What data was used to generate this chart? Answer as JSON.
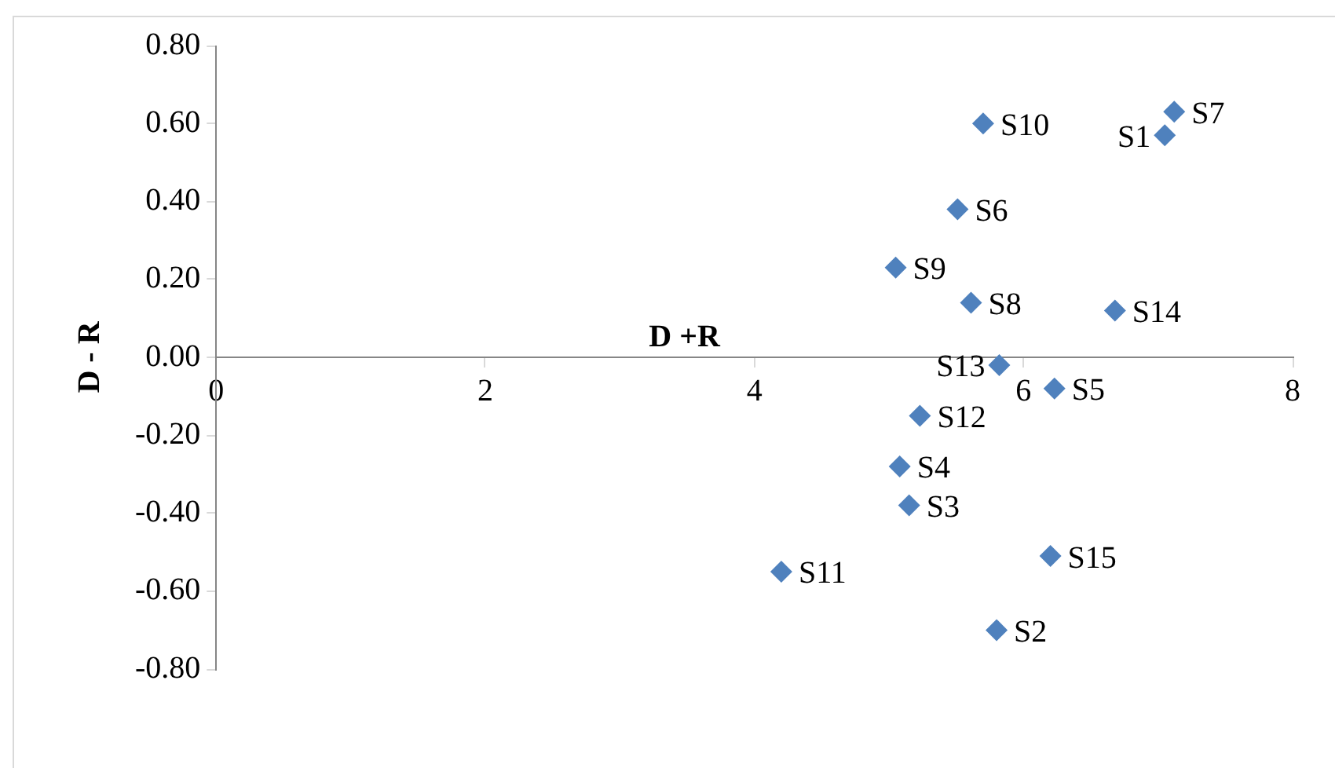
{
  "chart_data": {
    "type": "scatter",
    "xlabel": "D +R",
    "ylabel": "D - R",
    "x": [
      7.05,
      5.8,
      5.15,
      5.08,
      6.23,
      5.51,
      7.12,
      5.61,
      5.05,
      5.7,
      4.2,
      5.23,
      5.82,
      6.68,
      6.2
    ],
    "series": [
      {
        "color": "#4f81bd",
        "values": [
          0.57,
          -0.7,
          -0.38,
          -0.28,
          -0.08,
          0.38,
          0.63,
          0.14,
          0.23,
          0.6,
          -0.55,
          -0.15,
          -0.02,
          0.12,
          -0.51
        ]
      }
    ],
    "annotations": [
      {
        "text": "S1",
        "x": 7.05,
        "y": 0.57
      },
      {
        "text": "S2",
        "x": 5.8,
        "y": -0.7
      },
      {
        "text": "S3",
        "x": 5.15,
        "y": -0.38
      },
      {
        "text": "S4",
        "x": 5.08,
        "y": -0.28
      },
      {
        "text": "S5",
        "x": 6.23,
        "y": -0.08
      },
      {
        "text": "S6",
        "x": 5.51,
        "y": 0.38
      },
      {
        "text": "S7",
        "x": 7.12,
        "y": 0.63
      },
      {
        "text": "S8",
        "x": 5.61,
        "y": 0.14
      },
      {
        "text": "S9",
        "x": 5.05,
        "y": 0.23
      },
      {
        "text": "S10",
        "x": 5.7,
        "y": 0.6
      },
      {
        "text": "S11",
        "x": 4.2,
        "y": -0.55
      },
      {
        "text": "S12",
        "x": 5.23,
        "y": -0.15
      },
      {
        "text": "S13",
        "x": 5.82,
        "y": -0.02
      },
      {
        "text": "S14",
        "x": 6.68,
        "y": 0.12
      },
      {
        "text": "S15",
        "x": 6.2,
        "y": -0.51
      }
    ],
    "xlim": [
      0,
      8
    ],
    "xticks": [
      0,
      2,
      4,
      6,
      8
    ],
    "ylim": [
      -0.8,
      0.8
    ],
    "yticks": [
      {
        "value": -0.8,
        "label": "-0.80"
      },
      {
        "value": -0.6,
        "label": "-0.60"
      },
      {
        "value": -0.4,
        "label": "-0.40"
      },
      {
        "value": -0.2,
        "label": "-0.20"
      },
      {
        "value": 0,
        "label": "0.00"
      },
      {
        "value": 0.2,
        "label": "0.20"
      },
      {
        "value": 0.4,
        "label": "0.40"
      },
      {
        "value": 0.6,
        "label": "0.60"
      },
      {
        "value": 0.8,
        "label": "0.80"
      }
    ],
    "grid": false,
    "legend": false,
    "marker": "diamond"
  }
}
